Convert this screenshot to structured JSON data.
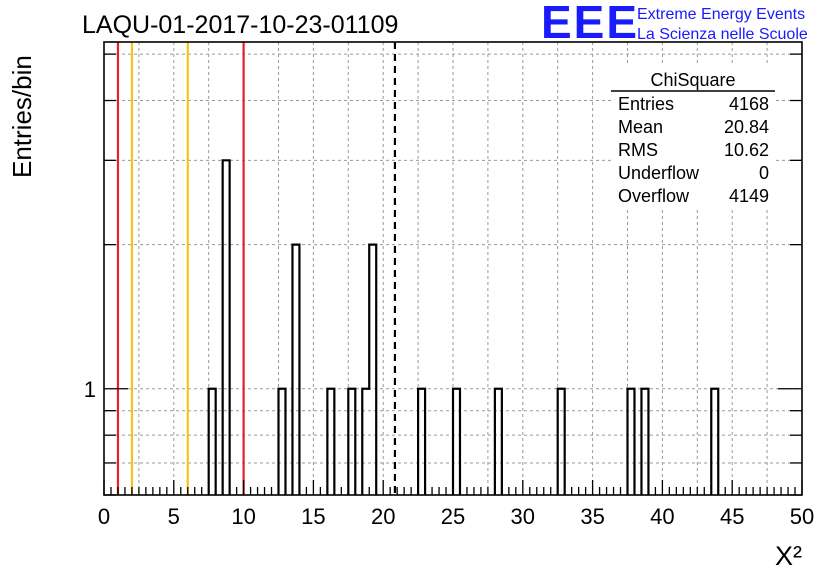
{
  "header": {
    "run_title": "LAQU-01-2017-10-23-01109",
    "logo_text": "EEE",
    "logo_line1": "Extreme Energy Events",
    "logo_line2": "La Scienza nelle Scuole"
  },
  "stats": {
    "title": "ChiSquare",
    "rows": [
      {
        "label": "Entries",
        "value": "4168"
      },
      {
        "label": "Mean",
        "value": "20.84"
      },
      {
        "label": "RMS",
        "value": "10.62"
      },
      {
        "label": "Underflow",
        "value": "0"
      },
      {
        "label": "Overflow",
        "value": "4149"
      }
    ]
  },
  "colors": {
    "red_line": "#e8202a",
    "yellow_line": "#f7c21c",
    "logo_blue": "#1a1aff",
    "grid": "#9a9a9a"
  },
  "chart_data": {
    "type": "bar",
    "histogram": "ChiSquare",
    "xlabel": "X²",
    "ylabel": "Entries/bin",
    "xlim": [
      0,
      50
    ],
    "yscale": "log",
    "ylim": [
      0.6,
      5.3
    ],
    "bin_width": 0.5,
    "grid": true,
    "x_ticks": [
      "0",
      "5",
      "10",
      "15",
      "20",
      "25",
      "30",
      "35",
      "40",
      "45",
      "50"
    ],
    "y_tick_labels": [
      "1"
    ],
    "bins": [
      {
        "x": 7.5,
        "count": 1
      },
      {
        "x": 8.5,
        "count": 3
      },
      {
        "x": 12.5,
        "count": 1
      },
      {
        "x": 13.5,
        "count": 2
      },
      {
        "x": 16.0,
        "count": 1
      },
      {
        "x": 17.5,
        "count": 1
      },
      {
        "x": 18.5,
        "count": 1
      },
      {
        "x": 19.0,
        "count": 2
      },
      {
        "x": 22.5,
        "count": 1
      },
      {
        "x": 25.0,
        "count": 1
      },
      {
        "x": 28.0,
        "count": 1
      },
      {
        "x": 32.5,
        "count": 1
      },
      {
        "x": 37.5,
        "count": 1
      },
      {
        "x": 38.5,
        "count": 1
      },
      {
        "x": 43.5,
        "count": 1
      }
    ],
    "vertical_lines": [
      {
        "x": 1.0,
        "color": "red",
        "style": "solid"
      },
      {
        "x": 2.0,
        "color": "yellow",
        "style": "solid"
      },
      {
        "x": 6.0,
        "color": "yellow",
        "style": "solid"
      },
      {
        "x": 10.0,
        "color": "red",
        "style": "solid"
      },
      {
        "x": 20.84,
        "color": "black",
        "style": "dashed"
      }
    ]
  }
}
